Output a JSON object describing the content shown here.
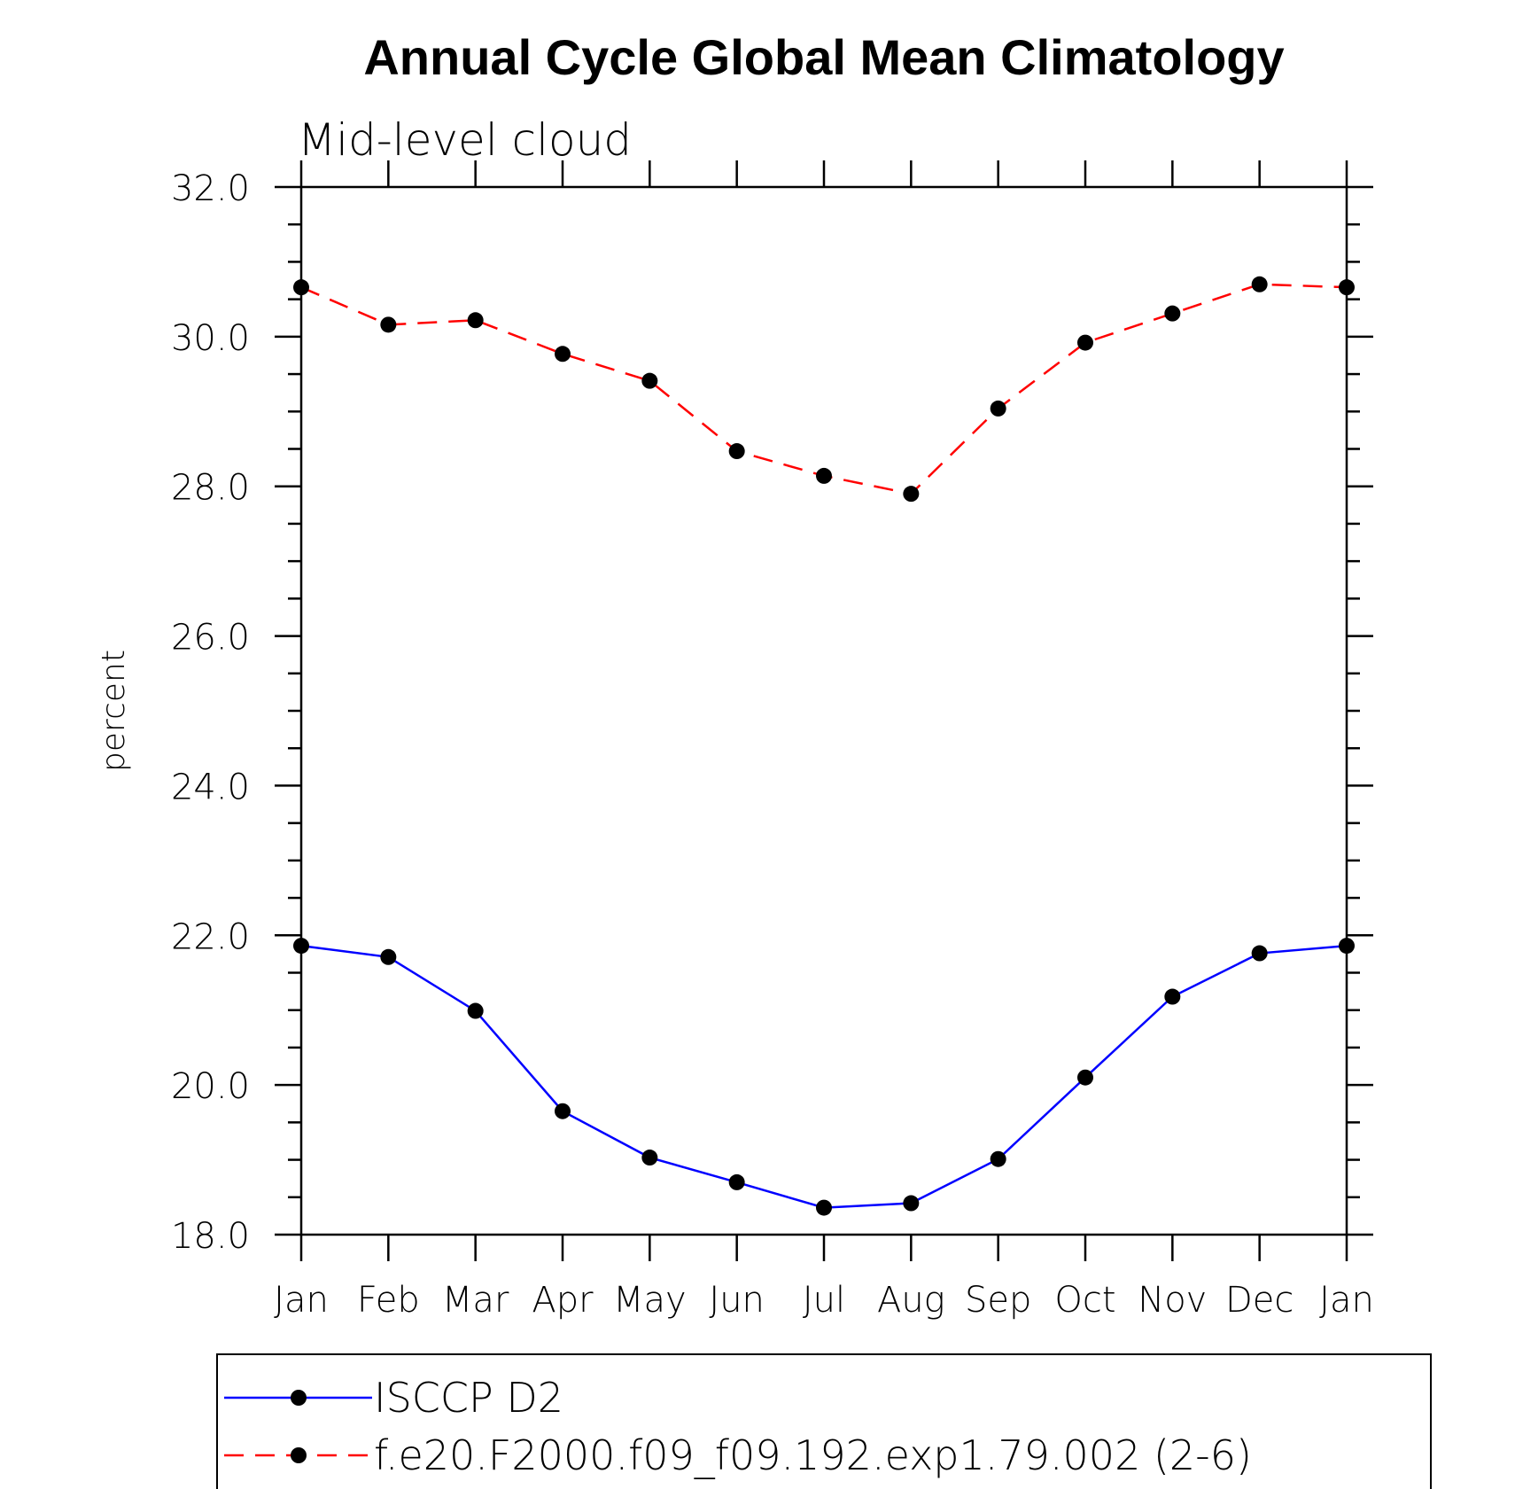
{
  "chart_data": {
    "type": "line",
    "title": "Annual Cycle Global Mean Climatology",
    "subtitle": "Mid-level cloud",
    "ylabel": "percent",
    "xlabel": "",
    "categories": [
      "Jan",
      "Feb",
      "Mar",
      "Apr",
      "May",
      "Jun",
      "Jul",
      "Aug",
      "Sep",
      "Oct",
      "Nov",
      "Dec",
      "Jan"
    ],
    "ylim": [
      18.0,
      32.0
    ],
    "yticks": [
      "18.0",
      "20.0",
      "22.0",
      "24.0",
      "26.0",
      "28.0",
      "30.0",
      "32.0"
    ],
    "grid": false,
    "legend_position": "bottom",
    "series": [
      {
        "name": "ISCCP D2",
        "color": "#0000ff",
        "dash": "solid",
        "marker": "filled-circle",
        "values": [
          21.86,
          21.71,
          20.99,
          19.65,
          19.03,
          18.7,
          18.36,
          18.42,
          19.01,
          20.1,
          21.18,
          21.76,
          21.86
        ]
      },
      {
        "name": "f.e20.F2000.f09_f09.192.exp1.79.002 (2-6)",
        "color": "#ff0000",
        "dash": "dashed",
        "marker": "filled-circle",
        "values": [
          30.66,
          30.16,
          30.22,
          29.77,
          29.41,
          28.47,
          28.14,
          27.9,
          29.04,
          29.92,
          30.31,
          30.7,
          30.66
        ]
      }
    ]
  }
}
